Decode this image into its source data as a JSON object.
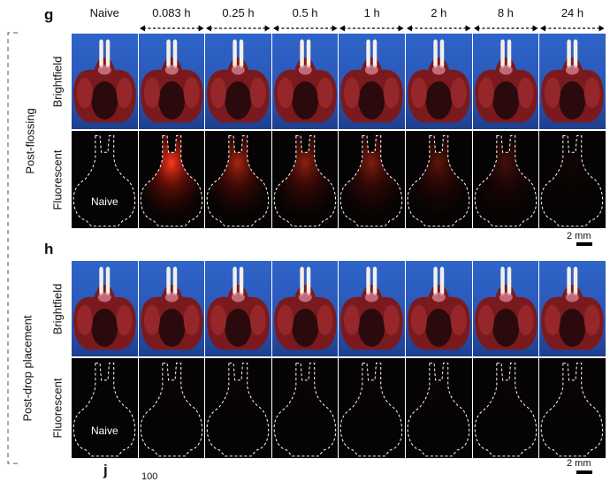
{
  "panels": {
    "g": {
      "letter": "g",
      "condition_label": "Post-flossing",
      "row_labels": {
        "brightfield": "Brightfield",
        "fluorescent": "Fluorescent"
      },
      "naive_label": "Naive",
      "fluorescence_intensity": [
        0,
        1.0,
        0.65,
        0.55,
        0.5,
        0.35,
        0.25,
        0.05
      ]
    },
    "h": {
      "letter": "h",
      "condition_label": "Post-drop placement",
      "row_labels": {
        "brightfield": "Brightfield",
        "fluorescent": "Fluorescent"
      },
      "naive_label": "Naive",
      "fluorescence_intensity": [
        0,
        0.02,
        0.02,
        0.02,
        0.02,
        0.02,
        0.02,
        0.02
      ]
    },
    "j": {
      "letter": "j",
      "axis_tick_top": "100"
    }
  },
  "time_points": [
    "Naive",
    "0.083 h",
    "0.25 h",
    "0.5 h",
    "1 h",
    "2 h",
    "8 h",
    "24 h"
  ],
  "scale_bar": "2 mm",
  "colors": {
    "background_blue": "#2f64c9",
    "tissue_red": "#7a1a1e",
    "fluorescence": "#ff3a1a",
    "outline": "#ffffff"
  }
}
